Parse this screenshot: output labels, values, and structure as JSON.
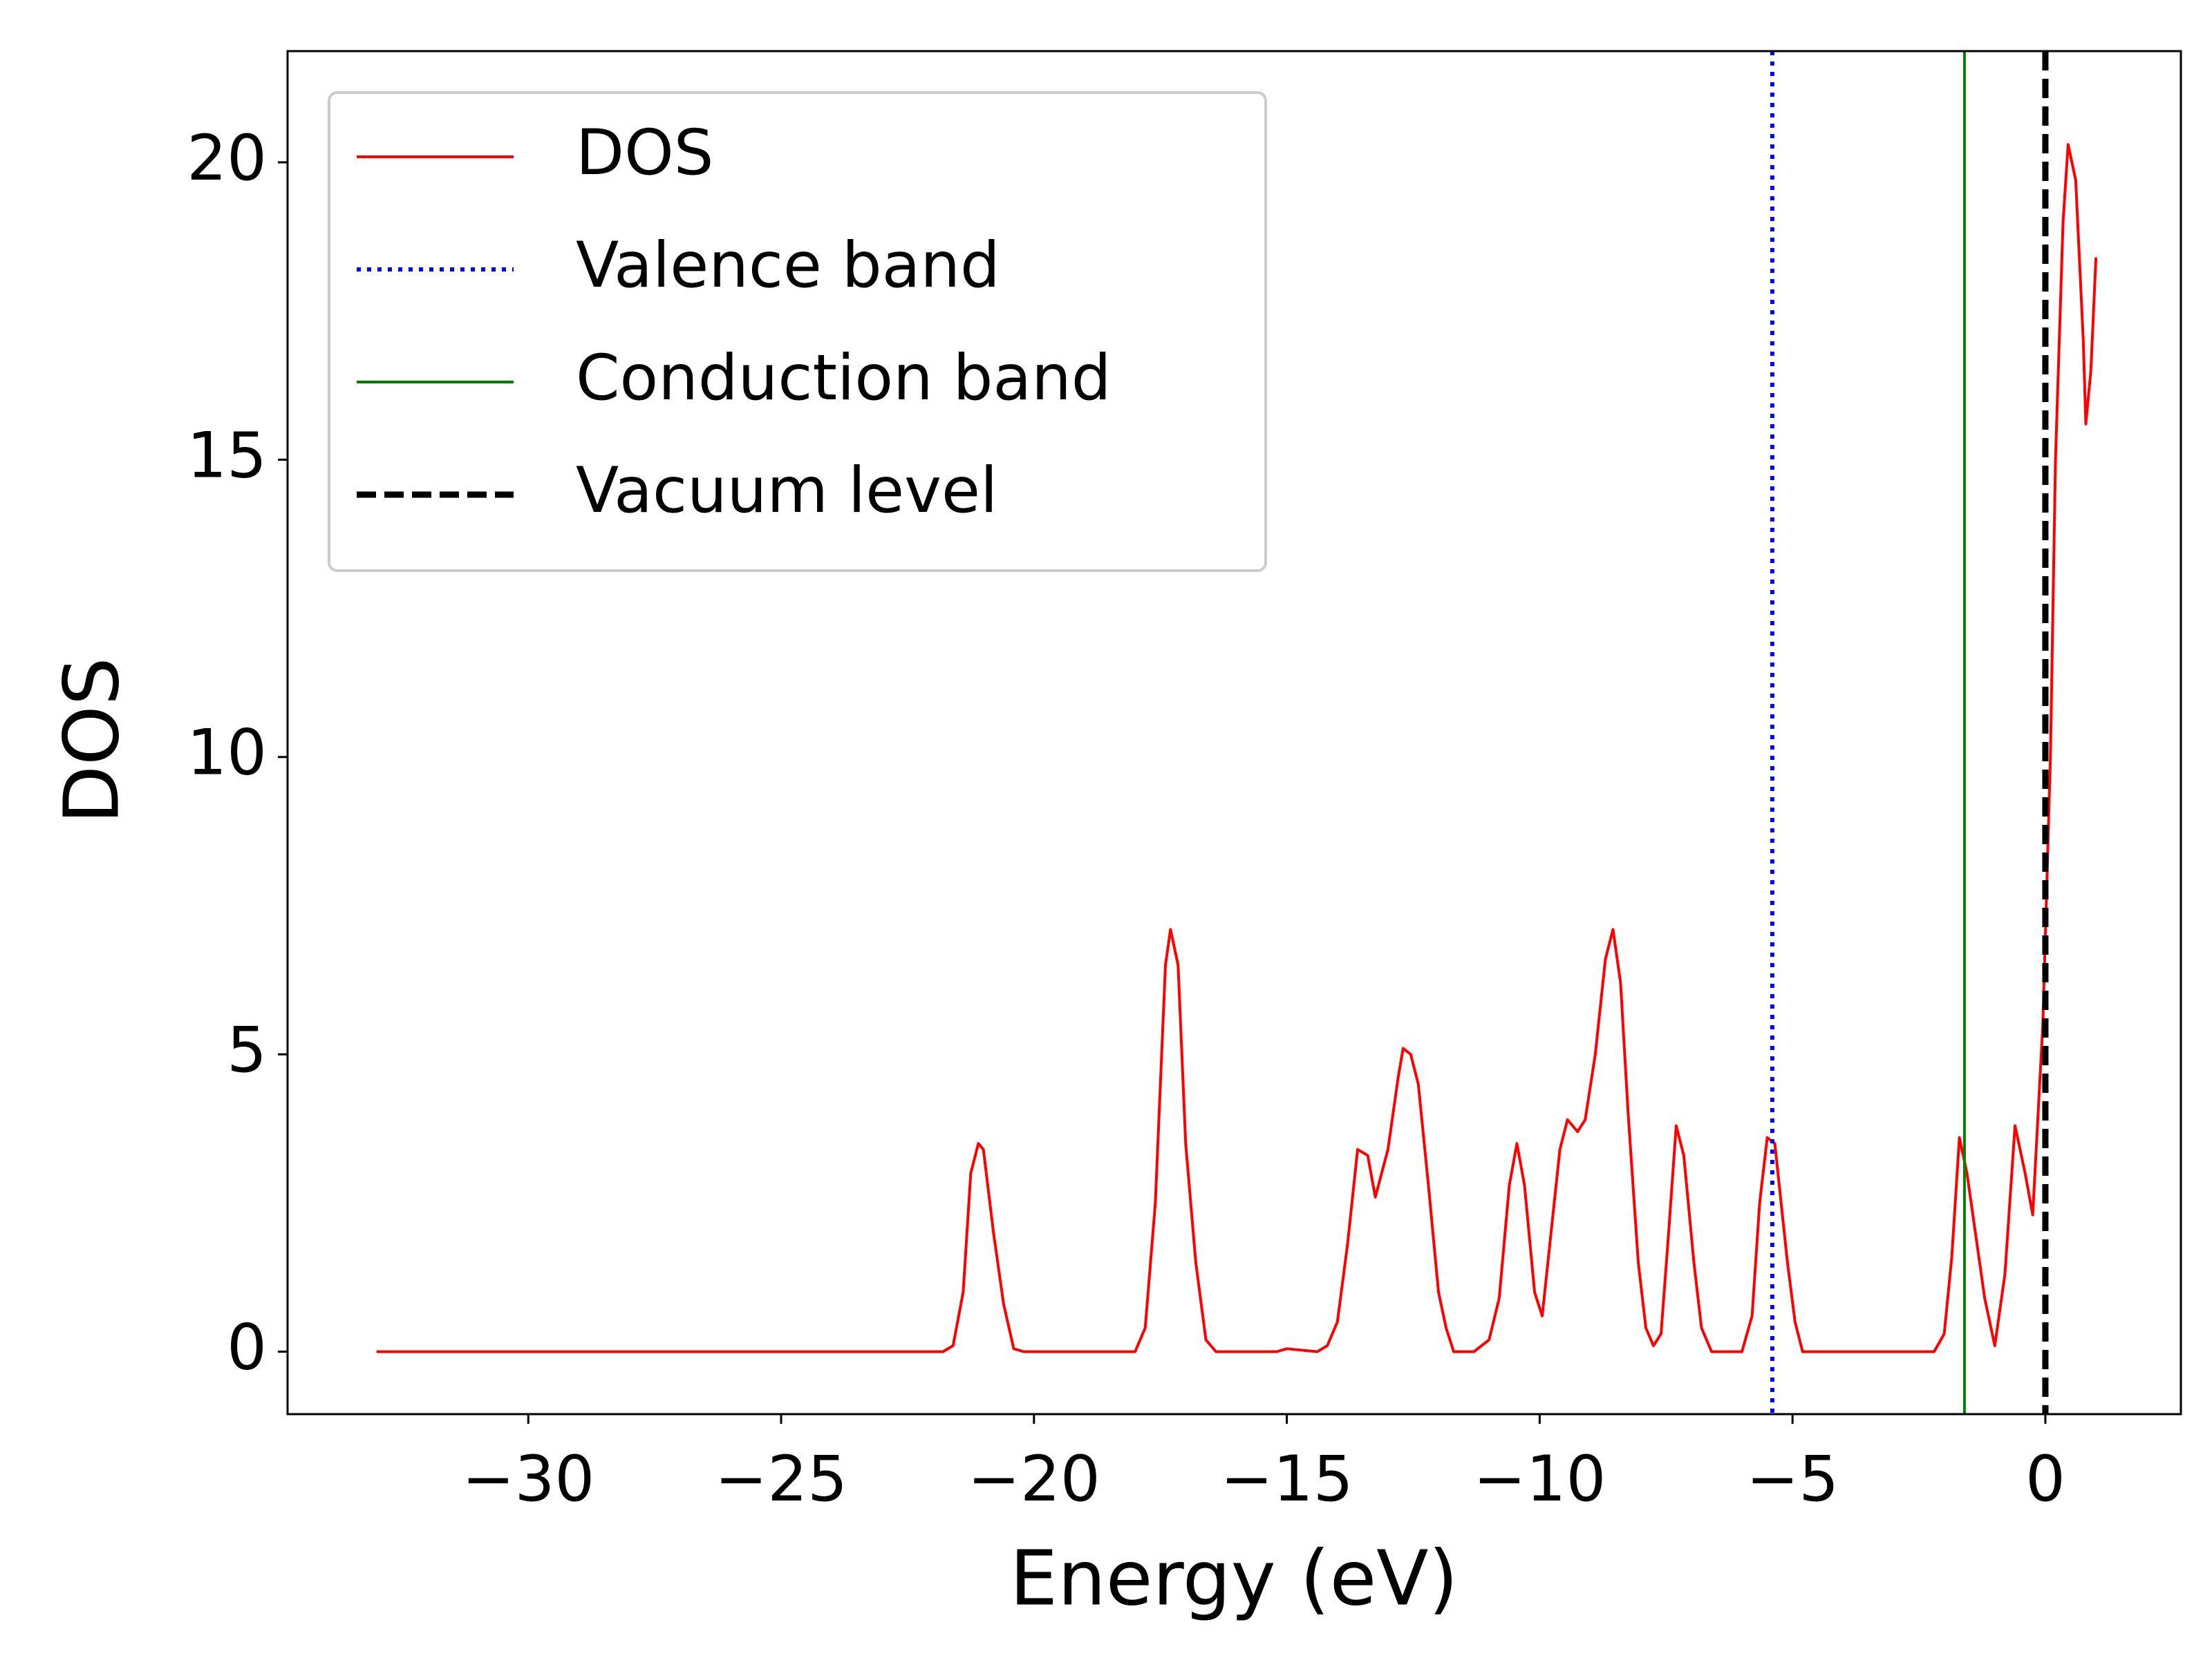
{
  "chart_data": {
    "type": "line",
    "xlabel": "Energy (eV)",
    "ylabel": "DOS",
    "xlim": [
      -34.76,
      2.68
    ],
    "ylim": [
      -1.05,
      21.87
    ],
    "xticks": [
      {
        "value": -30,
        "label": "−30"
      },
      {
        "value": -25,
        "label": "−25"
      },
      {
        "value": -20,
        "label": "−20"
      },
      {
        "value": -15,
        "label": "−15"
      },
      {
        "value": -10,
        "label": "−10"
      },
      {
        "value": -5,
        "label": "−5"
      },
      0
    ],
    "yticks": [
      0,
      5,
      10,
      15,
      20
    ],
    "grid": false,
    "legend": "upper left",
    "series": [
      {
        "name": "DOS",
        "color": "#ff0000",
        "x": [
          -33,
          -21.8,
          -21.6,
          -21.4,
          -21.25,
          -21.1,
          -21.0,
          -20.8,
          -20.6,
          -20.4,
          -20.2,
          -18.0,
          -17.8,
          -17.6,
          -17.4,
          -17.3,
          -17.15,
          -17.0,
          -16.8,
          -16.6,
          -16.4,
          -15.2,
          -15.0,
          -14.4,
          -14.2,
          -14.0,
          -13.8,
          -13.6,
          -13.4,
          -13.25,
          -13.0,
          -12.8,
          -12.7,
          -12.55,
          -12.4,
          -12.2,
          -12.0,
          -11.85,
          -11.7,
          -11.3,
          -11.0,
          -10.8,
          -10.6,
          -10.45,
          -10.3,
          -10.1,
          -9.95,
          -9.8,
          -9.6,
          -9.45,
          -9.25,
          -9.1,
          -8.9,
          -8.7,
          -8.55,
          -8.4,
          -8.25,
          -8.05,
          -7.9,
          -7.75,
          -7.6,
          -7.45,
          -7.3,
          -7.15,
          -6.95,
          -6.8,
          -6.6,
          -6.0,
          -5.8,
          -5.65,
          -5.5,
          -5.35,
          -5.1,
          -4.95,
          -4.8,
          -2.2,
          -2.0,
          -1.85,
          -1.7,
          -1.55,
          -1.35,
          -1.2,
          -1.0,
          -0.8,
          -0.6,
          -0.4,
          -0.25,
          -0.05,
          0.1,
          0.2,
          0.35,
          0.45,
          0.6,
          0.75,
          0.8,
          0.9,
          1.0
        ],
        "values": [
          0,
          0,
          0.1,
          1.0,
          3.0,
          3.5,
          3.4,
          2.0,
          0.8,
          0.05,
          0,
          0,
          0.4,
          2.5,
          6.5,
          7.1,
          6.5,
          3.5,
          1.5,
          0.2,
          0,
          0,
          0.05,
          0,
          0.1,
          0.5,
          1.8,
          3.4,
          3.3,
          2.6,
          3.4,
          4.6,
          5.1,
          5.0,
          4.5,
          2.8,
          1.0,
          0.4,
          0,
          0,
          0.2,
          0.9,
          2.8,
          3.5,
          2.8,
          1.0,
          0.6,
          1.8,
          3.4,
          3.9,
          3.7,
          3.9,
          5.0,
          6.6,
          7.1,
          6.2,
          4.0,
          1.5,
          0.4,
          0.1,
          0.3,
          2.0,
          3.8,
          3.3,
          1.5,
          0.4,
          0,
          0,
          0.6,
          2.5,
          3.6,
          3.5,
          1.5,
          0.5,
          0,
          0,
          0.3,
          1.6,
          3.6,
          3.0,
          1.8,
          0.9,
          0.1,
          1.3,
          3.8,
          3.0,
          2.3,
          5.5,
          10.0,
          15.0,
          19.0,
          20.3,
          19.7,
          17.0,
          15.6,
          16.5,
          18.4
        ]
      }
    ],
    "vlines": [
      {
        "name": "Valence band",
        "x": -5.4,
        "color": "#0000ff",
        "style": "dotted"
      },
      {
        "name": "Conduction band",
        "x": -1.6,
        "color": "#008000",
        "style": "solid"
      },
      {
        "name": "Vacuum level",
        "x": 0,
        "color": "#000000",
        "style": "dashed"
      }
    ]
  }
}
